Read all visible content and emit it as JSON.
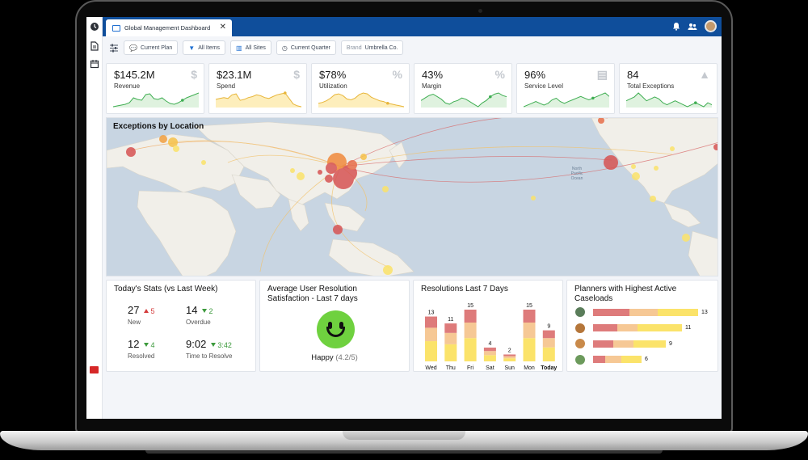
{
  "window": {
    "tab_title": "Global Management Dashboard",
    "close_icon": "close-icon"
  },
  "topbar_icons": [
    "bell-icon",
    "users-icon",
    "avatar"
  ],
  "rail_icons": [
    "clock-icon",
    "document-icon",
    "calendar-icon"
  ],
  "filters": {
    "settings_icon": "sliders-icon",
    "chips": [
      {
        "icon": "chat-icon",
        "label": "Current Plan"
      },
      {
        "icon": "filter-icon",
        "label": "All Items"
      },
      {
        "icon": "buildings-icon",
        "label": "All Sites"
      },
      {
        "icon": "clock-icon",
        "label": "Current Quarter"
      }
    ],
    "brand_prefix": "Brand",
    "brand_value": "Umbrella Co."
  },
  "kpis": [
    {
      "value": "$145.2M",
      "label": "Revenue",
      "icon": "dollar-icon",
      "color": "#3fae52",
      "fill": "#dff2df",
      "spark": [
        40,
        42,
        44,
        46,
        50,
        62,
        58,
        56,
        70,
        72,
        60,
        58,
        62,
        54,
        48,
        46,
        50,
        56,
        62,
        66,
        70,
        74
      ]
    },
    {
      "value": "$23.1M",
      "label": "Spend",
      "icon": "dollar-icon",
      "color": "#e8b63a",
      "fill": "#fdeebc",
      "spark": [
        60,
        62,
        64,
        62,
        70,
        72,
        58,
        60,
        64,
        66,
        70,
        68,
        64,
        62,
        66,
        70,
        72,
        74,
        62,
        50,
        46,
        44
      ]
    },
    {
      "value": "$78%",
      "label": "Utilization",
      "icon": "percent-icon",
      "color": "#e8b63a",
      "fill": "#fdeebc",
      "spark": [
        50,
        52,
        56,
        62,
        70,
        72,
        68,
        60,
        58,
        62,
        70,
        74,
        72,
        64,
        60,
        56,
        54,
        50,
        48,
        46,
        44,
        42
      ]
    },
    {
      "value": "43%",
      "label": "Margin",
      "icon": "percent-icon",
      "color": "#3fae52",
      "fill": "#dff2df",
      "spark": [
        50,
        54,
        58,
        60,
        56,
        52,
        46,
        44,
        48,
        50,
        54,
        52,
        48,
        44,
        40,
        46,
        50,
        56,
        60,
        62,
        58,
        56
      ]
    },
    {
      "value": "96%",
      "label": "Service Level",
      "icon": "clipboard-icon",
      "color": "#3fae52",
      "fill": "#dff2df",
      "spark": [
        46,
        48,
        50,
        52,
        50,
        48,
        50,
        54,
        56,
        52,
        50,
        52,
        54,
        56,
        58,
        56,
        54,
        56,
        58,
        60,
        62,
        58
      ]
    },
    {
      "value": "84",
      "label": "Total Exceptions",
      "icon": "warning-icon",
      "color": "#3fae52",
      "fill": "#dff2df",
      "spark": [
        62,
        64,
        66,
        70,
        66,
        62,
        64,
        66,
        64,
        60,
        58,
        60,
        62,
        60,
        58,
        56,
        58,
        60,
        58,
        56,
        60,
        58
      ]
    }
  ],
  "map": {
    "title": "Exceptions by Location",
    "labels": [
      {
        "text": "North",
        "x": 606,
        "y": 188
      },
      {
        "text": "Pacific",
        "x": 606,
        "y": 194
      },
      {
        "text": "Ocean",
        "x": 606,
        "y": 200
      }
    ]
  },
  "todays_stats": {
    "title": "Today's Stats (vs Last Week)",
    "items": [
      {
        "num": "27",
        "dir": "up",
        "delta": "5",
        "label": "New"
      },
      {
        "num": "14",
        "dir": "down",
        "delta": "2",
        "label": "Overdue"
      },
      {
        "num": "12",
        "dir": "down",
        "delta": "4",
        "label": "Resolved"
      },
      {
        "num": "9:02",
        "dir": "down",
        "delta": "3:42",
        "label": "Time to Resolve"
      }
    ]
  },
  "satisfaction": {
    "title_line1": "Average User Resolution",
    "title_line2": "Satisfaction - Last 7 days",
    "face_icon": "smiley-icon",
    "mood": "Happy",
    "score": "(4.2/5)"
  },
  "resolutions": {
    "title": "Resolutions Last 7 Days",
    "chart_data": {
      "type": "bar",
      "categories": [
        "Wed",
        "Thu",
        "Fri",
        "Sat",
        "Sun",
        "Mon",
        "Today"
      ],
      "values": [
        13,
        11,
        15,
        4,
        2,
        15,
        9
      ],
      "stacked_colors": [
        "#fbe36a",
        "#f6c895",
        "#de7b7b"
      ],
      "ylim": [
        0,
        15
      ]
    }
  },
  "planners": {
    "title_line1": "Planners with Highest Active",
    "title_line2": "Caseloads",
    "chart_data": {
      "type": "bar",
      "orientation": "horizontal",
      "values": [
        13,
        11,
        9,
        6
      ],
      "segment_colors": [
        "#de7b7b",
        "#f6c895",
        "#fbe36a"
      ],
      "segments": [
        [
          4.5,
          3.5,
          5
        ],
        [
          3,
          2.5,
          5.5
        ],
        [
          2.5,
          2.5,
          4
        ],
        [
          1.5,
          2,
          2.5
        ]
      ]
    },
    "avatars": [
      "#5a7d5a",
      "#b5763a",
      "#c98a4a",
      "#6c9a5c"
    ]
  }
}
